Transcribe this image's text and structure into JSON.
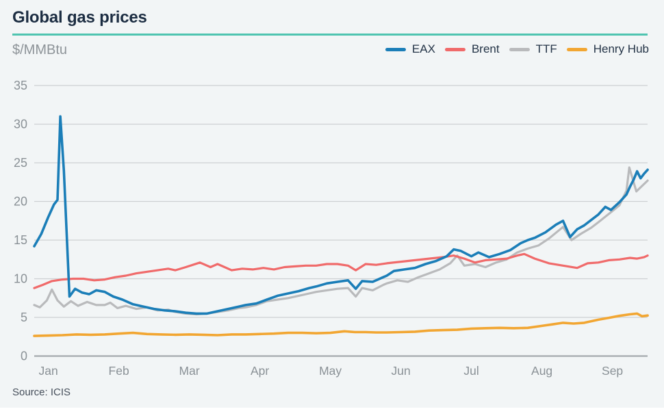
{
  "header": {
    "title": "Global gas prices"
  },
  "units_label": "$/MMBtu",
  "source": "Source: ICIS",
  "colors": {
    "accent_teal": "#4fc4b0",
    "background": "#f2f5f6",
    "grid": "#cdd1d3",
    "baseline": "#9aa0a4",
    "axis_text": "#8a9196",
    "title_text": "#1c2d42"
  },
  "legend": [
    {
      "label": "EAX",
      "color": "#1b7eb8"
    },
    {
      "label": "Brent",
      "color": "#f06a6a"
    },
    {
      "label": "TTF",
      "color": "#b9babc"
    },
    {
      "label": "Henry Hub",
      "color": "#f2a632"
    }
  ],
  "chart_data": {
    "type": "line",
    "title": "Global gas prices",
    "ylabel": "$/MMBtu",
    "ylim": [
      0,
      35
    ],
    "yticks": [
      0,
      5,
      10,
      15,
      20,
      25,
      30,
      35
    ],
    "xtick_labels": [
      "Jan",
      "Feb",
      "Mar",
      "Apr",
      "May",
      "Jun",
      "Jul",
      "Aug",
      "Sep"
    ],
    "x_unit": "months, 0 = Jan 1, data ends late Sep",
    "grid": "horizontal",
    "legend_position": "top-right",
    "source": "ICIS",
    "series": [
      {
        "name": "EAX",
        "color": "#1b7eb8",
        "points": [
          [
            0,
            14.2
          ],
          [
            0.1,
            15.8
          ],
          [
            0.2,
            18.0
          ],
          [
            0.28,
            19.6
          ],
          [
            0.33,
            20.2
          ],
          [
            0.37,
            31.0
          ],
          [
            0.42,
            24.0
          ],
          [
            0.5,
            7.7
          ],
          [
            0.58,
            8.7
          ],
          [
            0.68,
            8.2
          ],
          [
            0.78,
            8.0
          ],
          [
            0.88,
            8.5
          ],
          [
            1.0,
            8.3
          ],
          [
            1.12,
            7.7
          ],
          [
            1.25,
            7.3
          ],
          [
            1.4,
            6.7
          ],
          [
            1.55,
            6.4
          ],
          [
            1.7,
            6.1
          ],
          [
            1.85,
            5.9
          ],
          [
            2.0,
            5.8
          ],
          [
            2.15,
            5.6
          ],
          [
            2.3,
            5.5
          ],
          [
            2.45,
            5.5
          ],
          [
            2.6,
            5.8
          ],
          [
            2.75,
            6.1
          ],
          [
            2.9,
            6.4
          ],
          [
            3.0,
            6.6
          ],
          [
            3.15,
            6.8
          ],
          [
            3.3,
            7.3
          ],
          [
            3.45,
            7.8
          ],
          [
            3.6,
            8.1
          ],
          [
            3.75,
            8.4
          ],
          [
            3.9,
            8.8
          ],
          [
            4.0,
            9.0
          ],
          [
            4.15,
            9.4
          ],
          [
            4.3,
            9.6
          ],
          [
            4.45,
            9.8
          ],
          [
            4.56,
            8.7
          ],
          [
            4.65,
            9.7
          ],
          [
            4.8,
            9.6
          ],
          [
            4.95,
            10.2
          ],
          [
            5.0,
            10.4
          ],
          [
            5.1,
            11.0
          ],
          [
            5.25,
            11.2
          ],
          [
            5.4,
            11.4
          ],
          [
            5.55,
            11.9
          ],
          [
            5.7,
            12.3
          ],
          [
            5.85,
            12.9
          ],
          [
            5.95,
            13.8
          ],
          [
            6.05,
            13.6
          ],
          [
            6.2,
            12.9
          ],
          [
            6.3,
            13.4
          ],
          [
            6.45,
            12.8
          ],
          [
            6.6,
            13.2
          ],
          [
            6.75,
            13.7
          ],
          [
            6.9,
            14.6
          ],
          [
            7.0,
            15.0
          ],
          [
            7.1,
            15.3
          ],
          [
            7.25,
            16.0
          ],
          [
            7.4,
            17.0
          ],
          [
            7.5,
            17.5
          ],
          [
            7.6,
            15.4
          ],
          [
            7.7,
            16.4
          ],
          [
            7.8,
            16.9
          ],
          [
            7.9,
            17.6
          ],
          [
            8.0,
            18.3
          ],
          [
            8.1,
            19.3
          ],
          [
            8.18,
            18.9
          ],
          [
            8.3,
            19.9
          ],
          [
            8.4,
            20.9
          ],
          [
            8.45,
            21.9
          ],
          [
            8.5,
            22.8
          ],
          [
            8.55,
            23.9
          ],
          [
            8.6,
            23.0
          ],
          [
            8.65,
            23.6
          ],
          [
            8.7,
            24.1
          ]
        ]
      },
      {
        "name": "Brent",
        "color": "#f06a6a",
        "points": [
          [
            0,
            8.8
          ],
          [
            0.12,
            9.2
          ],
          [
            0.25,
            9.7
          ],
          [
            0.4,
            9.9
          ],
          [
            0.55,
            10.0
          ],
          [
            0.7,
            10.0
          ],
          [
            0.85,
            9.8
          ],
          [
            1.0,
            9.9
          ],
          [
            1.15,
            10.2
          ],
          [
            1.3,
            10.4
          ],
          [
            1.45,
            10.7
          ],
          [
            1.6,
            10.9
          ],
          [
            1.75,
            11.1
          ],
          [
            1.9,
            11.3
          ],
          [
            2.0,
            11.1
          ],
          [
            2.15,
            11.5
          ],
          [
            2.35,
            12.1
          ],
          [
            2.5,
            11.5
          ],
          [
            2.6,
            11.9
          ],
          [
            2.7,
            11.5
          ],
          [
            2.8,
            11.1
          ],
          [
            2.95,
            11.3
          ],
          [
            3.1,
            11.2
          ],
          [
            3.25,
            11.4
          ],
          [
            3.4,
            11.2
          ],
          [
            3.55,
            11.5
          ],
          [
            3.7,
            11.6
          ],
          [
            3.85,
            11.7
          ],
          [
            4.0,
            11.7
          ],
          [
            4.15,
            11.9
          ],
          [
            4.3,
            11.9
          ],
          [
            4.45,
            11.7
          ],
          [
            4.56,
            11.1
          ],
          [
            4.7,
            11.9
          ],
          [
            4.85,
            11.8
          ],
          [
            5.0,
            12.0
          ],
          [
            5.2,
            12.2
          ],
          [
            5.4,
            12.4
          ],
          [
            5.6,
            12.6
          ],
          [
            5.8,
            12.8
          ],
          [
            5.95,
            13.0
          ],
          [
            6.1,
            12.6
          ],
          [
            6.25,
            12.1
          ],
          [
            6.4,
            12.4
          ],
          [
            6.55,
            12.5
          ],
          [
            6.7,
            12.6
          ],
          [
            6.85,
            13.0
          ],
          [
            6.95,
            13.2
          ],
          [
            7.1,
            12.6
          ],
          [
            7.3,
            12.0
          ],
          [
            7.5,
            11.7
          ],
          [
            7.7,
            11.4
          ],
          [
            7.85,
            12.0
          ],
          [
            8.0,
            12.1
          ],
          [
            8.15,
            12.4
          ],
          [
            8.3,
            12.5
          ],
          [
            8.45,
            12.7
          ],
          [
            8.55,
            12.6
          ],
          [
            8.65,
            12.8
          ],
          [
            8.7,
            13.0
          ]
        ]
      },
      {
        "name": "TTF",
        "color": "#b9babc",
        "points": [
          [
            0,
            6.6
          ],
          [
            0.08,
            6.3
          ],
          [
            0.18,
            7.2
          ],
          [
            0.25,
            8.6
          ],
          [
            0.33,
            7.2
          ],
          [
            0.42,
            6.4
          ],
          [
            0.52,
            7.1
          ],
          [
            0.62,
            6.5
          ],
          [
            0.75,
            7.0
          ],
          [
            0.88,
            6.6
          ],
          [
            1.0,
            6.6
          ],
          [
            1.08,
            6.9
          ],
          [
            1.18,
            6.2
          ],
          [
            1.3,
            6.5
          ],
          [
            1.45,
            6.1
          ],
          [
            1.6,
            6.3
          ],
          [
            1.75,
            5.9
          ],
          [
            1.9,
            6.0
          ],
          [
            2.0,
            5.7
          ],
          [
            2.15,
            5.5
          ],
          [
            2.3,
            5.4
          ],
          [
            2.45,
            5.5
          ],
          [
            2.6,
            5.7
          ],
          [
            2.75,
            5.9
          ],
          [
            2.9,
            6.2
          ],
          [
            3.0,
            6.3
          ],
          [
            3.15,
            6.6
          ],
          [
            3.3,
            7.1
          ],
          [
            3.45,
            7.3
          ],
          [
            3.6,
            7.5
          ],
          [
            3.75,
            7.8
          ],
          [
            3.9,
            8.1
          ],
          [
            4.0,
            8.3
          ],
          [
            4.15,
            8.5
          ],
          [
            4.3,
            8.7
          ],
          [
            4.45,
            8.8
          ],
          [
            4.56,
            7.7
          ],
          [
            4.65,
            8.8
          ],
          [
            4.8,
            8.5
          ],
          [
            4.95,
            9.2
          ],
          [
            5.0,
            9.4
          ],
          [
            5.15,
            9.8
          ],
          [
            5.3,
            9.6
          ],
          [
            5.45,
            10.2
          ],
          [
            5.6,
            10.7
          ],
          [
            5.75,
            11.2
          ],
          [
            5.9,
            12.0
          ],
          [
            6.0,
            13.0
          ],
          [
            6.1,
            11.7
          ],
          [
            6.25,
            11.9
          ],
          [
            6.4,
            11.5
          ],
          [
            6.55,
            12.1
          ],
          [
            6.7,
            12.5
          ],
          [
            6.85,
            13.4
          ],
          [
            7.0,
            13.9
          ],
          [
            7.15,
            14.3
          ],
          [
            7.3,
            15.2
          ],
          [
            7.5,
            16.7
          ],
          [
            7.62,
            15.0
          ],
          [
            7.75,
            15.8
          ],
          [
            7.9,
            16.6
          ],
          [
            8.0,
            17.3
          ],
          [
            8.15,
            18.4
          ],
          [
            8.3,
            19.5
          ],
          [
            8.4,
            21.4
          ],
          [
            8.44,
            24.4
          ],
          [
            8.54,
            21.3
          ],
          [
            8.62,
            22.0
          ],
          [
            8.7,
            22.7
          ]
        ]
      },
      {
        "name": "Henry Hub",
        "color": "#f2a632",
        "points": [
          [
            0,
            2.6
          ],
          [
            0.2,
            2.65
          ],
          [
            0.4,
            2.7
          ],
          [
            0.6,
            2.8
          ],
          [
            0.8,
            2.75
          ],
          [
            1.0,
            2.8
          ],
          [
            1.2,
            2.9
          ],
          [
            1.4,
            3.0
          ],
          [
            1.6,
            2.85
          ],
          [
            1.8,
            2.8
          ],
          [
            2.0,
            2.75
          ],
          [
            2.2,
            2.8
          ],
          [
            2.4,
            2.75
          ],
          [
            2.6,
            2.7
          ],
          [
            2.8,
            2.8
          ],
          [
            3.0,
            2.8
          ],
          [
            3.2,
            2.85
          ],
          [
            3.4,
            2.9
          ],
          [
            3.6,
            3.0
          ],
          [
            3.8,
            3.0
          ],
          [
            4.0,
            2.95
          ],
          [
            4.2,
            3.0
          ],
          [
            4.4,
            3.2
          ],
          [
            4.55,
            3.1
          ],
          [
            4.7,
            3.1
          ],
          [
            4.85,
            3.05
          ],
          [
            5.0,
            3.05
          ],
          [
            5.2,
            3.1
          ],
          [
            5.4,
            3.15
          ],
          [
            5.6,
            3.3
          ],
          [
            5.8,
            3.35
          ],
          [
            6.0,
            3.4
          ],
          [
            6.2,
            3.55
          ],
          [
            6.4,
            3.6
          ],
          [
            6.6,
            3.65
          ],
          [
            6.8,
            3.6
          ],
          [
            7.0,
            3.65
          ],
          [
            7.2,
            3.9
          ],
          [
            7.35,
            4.1
          ],
          [
            7.5,
            4.3
          ],
          [
            7.65,
            4.2
          ],
          [
            7.8,
            4.3
          ],
          [
            8.0,
            4.7
          ],
          [
            8.15,
            4.95
          ],
          [
            8.3,
            5.2
          ],
          [
            8.45,
            5.4
          ],
          [
            8.55,
            5.5
          ],
          [
            8.62,
            5.15
          ],
          [
            8.7,
            5.25
          ]
        ]
      }
    ]
  }
}
